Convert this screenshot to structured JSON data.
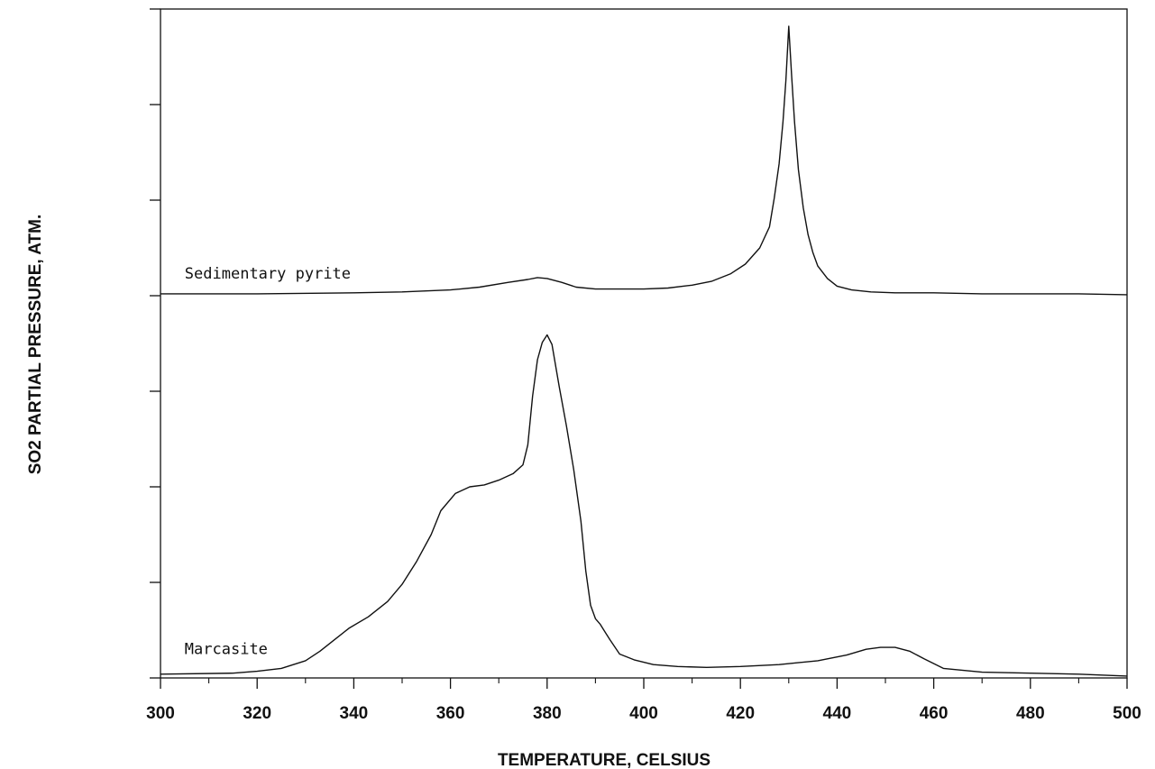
{
  "chart_data": {
    "type": "line",
    "xlabel": "TEMPERATURE, CELSIUS",
    "ylabel": "SO2 PARTIAL PRESSURE, ATM.",
    "xlim": [
      300,
      500
    ],
    "x_ticks": [
      300,
      320,
      340,
      360,
      380,
      400,
      420,
      440,
      460,
      480,
      500
    ],
    "ylim": [
      0,
      7
    ],
    "y_ticks": [
      0,
      1,
      2,
      3,
      4,
      5,
      6,
      7
    ],
    "grid": false,
    "legend": "none",
    "series": [
      {
        "name": "Sedimentary pyrite",
        "label_at": [
          305,
          4.18
        ],
        "x": [
          300,
          320,
          340,
          350,
          360,
          366,
          372,
          376,
          378,
          380,
          383,
          386,
          390,
          395,
          400,
          405,
          410,
          414,
          418,
          421,
          424,
          426,
          427,
          428,
          428.8,
          429.4,
          430,
          430.6,
          431.2,
          432,
          433,
          434,
          435,
          436,
          438,
          440,
          443,
          447,
          452,
          460,
          470,
          480,
          490,
          500
        ],
        "y": [
          4.02,
          4.02,
          4.03,
          4.04,
          4.06,
          4.09,
          4.14,
          4.17,
          4.19,
          4.18,
          4.14,
          4.09,
          4.07,
          4.07,
          4.07,
          4.08,
          4.11,
          4.15,
          4.23,
          4.33,
          4.5,
          4.72,
          5.02,
          5.38,
          5.82,
          6.25,
          6.82,
          6.3,
          5.82,
          5.32,
          4.92,
          4.64,
          4.45,
          4.31,
          4.18,
          4.1,
          4.06,
          4.04,
          4.03,
          4.03,
          4.02,
          4.02,
          4.02,
          4.01
        ]
      },
      {
        "name": "Marcasite",
        "label_at": [
          305,
          0.25
        ],
        "x": [
          300,
          315,
          320,
          325,
          330,
          333,
          336,
          339,
          343,
          347,
          350,
          353,
          356,
          358,
          361,
          364,
          367,
          370,
          373,
          375,
          376,
          377,
          378,
          379,
          380,
          381,
          382.5,
          384,
          385.5,
          387,
          388,
          389,
          390,
          391,
          392,
          393,
          395,
          398,
          402,
          407,
          413,
          420,
          428,
          436,
          442,
          446,
          449,
          452,
          455,
          458,
          462,
          470,
          480,
          490,
          500
        ],
        "y": [
          0.04,
          0.05,
          0.07,
          0.1,
          0.18,
          0.28,
          0.4,
          0.52,
          0.64,
          0.8,
          0.98,
          1.22,
          1.5,
          1.75,
          1.93,
          2.0,
          2.02,
          2.07,
          2.14,
          2.23,
          2.44,
          2.95,
          3.33,
          3.51,
          3.59,
          3.49,
          3.05,
          2.64,
          2.18,
          1.64,
          1.12,
          0.76,
          0.62,
          0.56,
          0.48,
          0.4,
          0.25,
          0.19,
          0.14,
          0.12,
          0.11,
          0.12,
          0.14,
          0.18,
          0.24,
          0.3,
          0.32,
          0.32,
          0.28,
          0.2,
          0.1,
          0.06,
          0.05,
          0.04,
          0.02
        ]
      }
    ]
  }
}
